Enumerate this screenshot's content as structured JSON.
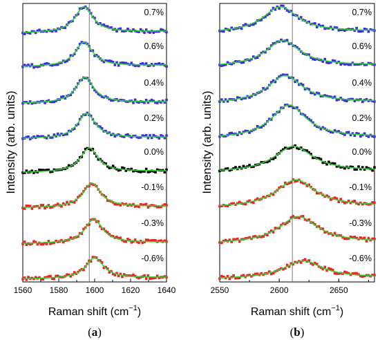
{
  "chart_data": [
    {
      "type": "scatter",
      "panel_label": "(a)",
      "panel_letter": "a",
      "xlabel": "Raman shift (cm",
      "xlabel_sup": "−1",
      "xlabel_tail": ")",
      "ylabel": "Intensity (arb. units)",
      "xlim": [
        1560,
        1640
      ],
      "xticks": [
        1560,
        1580,
        1600,
        1620,
        1640
      ],
      "reference_line_x": 1597,
      "colors": {
        "tensile": "#3a2ee0",
        "unstrained": "#000000",
        "compressive": "#ee2222",
        "fit": "#33cc33"
      },
      "series": [
        {
          "name": "0.7%",
          "peak": 1594,
          "width": 6,
          "amplitude": 0.62,
          "color": "tensile"
        },
        {
          "name": "0.6%",
          "peak": 1594,
          "width": 6,
          "amplitude": 0.58,
          "color": "tensile"
        },
        {
          "name": "0.4%",
          "peak": 1594.5,
          "width": 6,
          "amplitude": 0.62,
          "color": "tensile"
        },
        {
          "name": "0.2%",
          "peak": 1595.5,
          "width": 6,
          "amplitude": 0.6,
          "color": "tensile"
        },
        {
          "name": "0.0%",
          "peak": 1597,
          "width": 6,
          "amplitude": 0.58,
          "color": "unstrained"
        },
        {
          "name": "-0.1%",
          "peak": 1598.5,
          "width": 6,
          "amplitude": 0.58,
          "color": "compressive"
        },
        {
          "name": "-0.3%",
          "peak": 1599.5,
          "width": 6,
          "amplitude": 0.58,
          "color": "compressive"
        },
        {
          "name": "-0.6%",
          "peak": 1600,
          "width": 6,
          "amplitude": 0.5,
          "color": "compressive"
        }
      ]
    },
    {
      "type": "scatter",
      "panel_label": "(b)",
      "panel_letter": "b",
      "xlabel": "Raman shift (cm",
      "xlabel_sup": "−1",
      "xlabel_tail": ")",
      "ylabel": "Intensity (arb. units)",
      "xlim": [
        2550,
        2680
      ],
      "xticks": [
        2550,
        2600,
        2650
      ],
      "reference_line_x": 2611,
      "colors": {
        "tensile": "#3a2ee0",
        "unstrained": "#000000",
        "compressive": "#ee2222",
        "fit": "#33cc33"
      },
      "series": [
        {
          "name": "0.7%",
          "peak": 2601,
          "width": 18,
          "amplitude": 0.62,
          "color": "tensile"
        },
        {
          "name": "0.6%",
          "peak": 2603,
          "width": 18,
          "amplitude": 0.62,
          "color": "tensile"
        },
        {
          "name": "0.4%",
          "peak": 2605,
          "width": 18,
          "amplitude": 0.66,
          "color": "tensile"
        },
        {
          "name": "0.2%",
          "peak": 2608,
          "width": 18,
          "amplitude": 0.8,
          "color": "tensile"
        },
        {
          "name": "0.0%",
          "peak": 2612,
          "width": 20,
          "amplitude": 0.62,
          "color": "unstrained"
        },
        {
          "name": "-0.1%",
          "peak": 2614,
          "width": 20,
          "amplitude": 0.66,
          "color": "compressive"
        },
        {
          "name": "-0.3%",
          "peak": 2616,
          "width": 20,
          "amplitude": 0.64,
          "color": "compressive"
        },
        {
          "name": "-0.6%",
          "peak": 2620,
          "width": 20,
          "amplitude": 0.42,
          "color": "compressive"
        }
      ]
    }
  ]
}
